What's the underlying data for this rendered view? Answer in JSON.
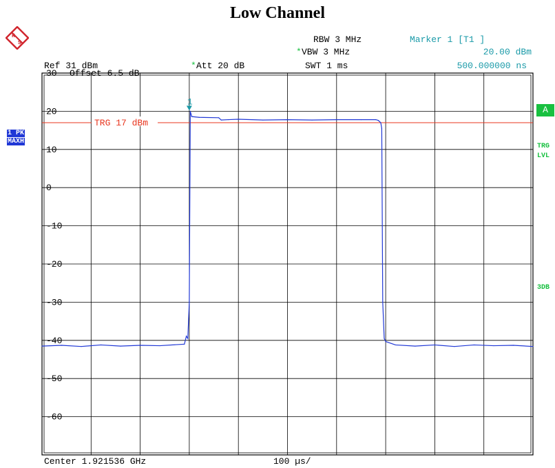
{
  "header": {
    "title": "Low Channel",
    "rbw": "RBW 3 MHz",
    "vbw": "VBW 3 MHz",
    "swt": "SWT 1 ms",
    "vbw_star": "*",
    "att_star": "*",
    "ref": "Ref   31 dBm",
    "att": "Att   20 dB",
    "marker_title": "Marker 1 [T1 ]",
    "marker_level": "20.00 dBm",
    "marker_time": "500.000000 ns"
  },
  "side": {
    "trace_label": "1 PK",
    "trace_mode": "MAXH",
    "a_box": "A",
    "trg": "TRG",
    "lvl": "LVL",
    "db3": "3DB"
  },
  "logo_text": "R&S",
  "footer": {
    "center": "Center 1.921536 GHz",
    "span_div": "100 µs/"
  },
  "chart_data": {
    "type": "line",
    "title": "Low Channel",
    "xlabel": "",
    "ylabel": "",
    "x_unit": "µs",
    "y_unit": "dBm",
    "xlim": [
      0,
      1000
    ],
    "ylim": [
      -70,
      30
    ],
    "grid": true,
    "offset_label": "Offset   6.5 dB",
    "y_tick_labels": [
      "30",
      "20",
      "10",
      "0",
      "-10",
      "-20",
      "-30",
      "-40",
      "-50",
      "-60"
    ],
    "y_tick_values": [
      30,
      20,
      10,
      0,
      -10,
      -20,
      -30,
      -40,
      -50,
      -60
    ],
    "trigger_line": {
      "value": 17,
      "label": "TRG 17 dBm",
      "color": "#e8351e"
    },
    "marker": {
      "label": "1",
      "x": 300,
      "y": 20.0
    },
    "series": [
      {
        "color": "#1f37d6",
        "x": [
          0,
          40,
          80,
          120,
          160,
          200,
          240,
          290,
          294,
          297,
          300,
          302,
          305,
          320,
          360,
          365,
          380,
          400,
          450,
          500,
          550,
          600,
          650,
          680,
          685,
          690,
          692,
          694,
          697,
          700,
          720,
          760,
          800,
          840,
          880,
          920,
          960,
          1000
        ],
        "y": [
          -41.5,
          -41.3,
          -41.6,
          -41.2,
          -41.5,
          -41.3,
          -41.4,
          -41.0,
          -38.9,
          -39.5,
          -30.0,
          20.0,
          18.6,
          18.4,
          18.3,
          17.7,
          17.8,
          17.9,
          17.7,
          17.8,
          17.7,
          17.8,
          17.8,
          17.8,
          17.6,
          17.0,
          15.5,
          -30.0,
          -39.5,
          -40.3,
          -41.2,
          -41.5,
          -41.2,
          -41.6,
          -41.2,
          -41.4,
          -41.3,
          -41.6
        ]
      }
    ]
  }
}
